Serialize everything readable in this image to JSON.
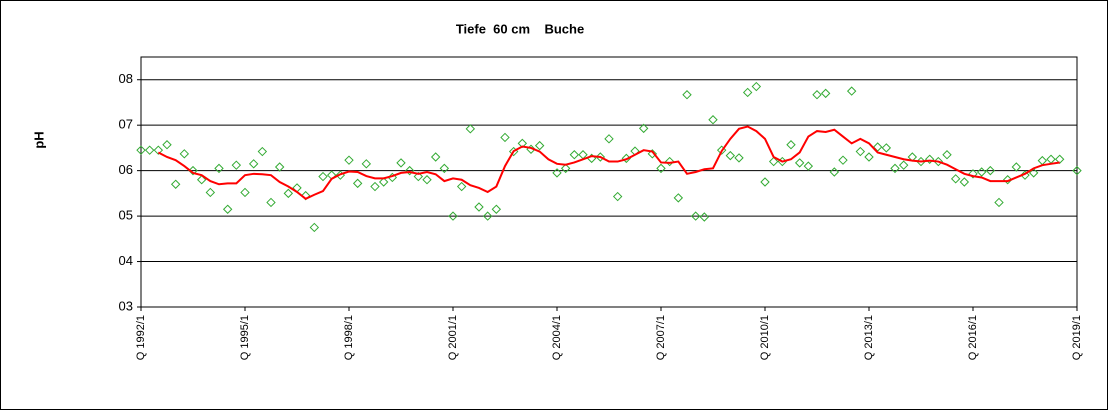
{
  "chart_data": {
    "type": "line",
    "title": "Tiefe  60 cm    Buche",
    "y_label": "pH",
    "categories": [
      "Q 1992/1",
      null,
      null,
      null,
      null,
      null,
      null,
      null,
      null,
      null,
      null,
      null,
      "Q 1995/1",
      null,
      null,
      null,
      null,
      null,
      null,
      null,
      null,
      null,
      null,
      null,
      "Q 1998/1",
      null,
      null,
      null,
      null,
      null,
      null,
      null,
      null,
      null,
      null,
      null,
      "Q 2001/1",
      null,
      null,
      null,
      null,
      null,
      null,
      null,
      null,
      null,
      null,
      null,
      "Q 2004/1",
      null,
      null,
      null,
      null,
      null,
      null,
      null,
      null,
      null,
      null,
      null,
      "Q 2007/1",
      null,
      null,
      null,
      null,
      null,
      null,
      null,
      null,
      null,
      null,
      null,
      "Q 2010/1",
      null,
      null,
      null,
      null,
      null,
      null,
      null,
      null,
      null,
      null,
      null,
      "Q 2013/1",
      null,
      null,
      null,
      null,
      null,
      null,
      null,
      null,
      null,
      null,
      null,
      "Q 2016/1",
      null,
      null,
      null,
      null,
      null,
      null,
      null,
      null,
      null,
      null,
      null,
      "Q 2019/1"
    ],
    "series": [
      {
        "color": "#33aa33",
        "marker": "diamond",
        "values": [
          6.45,
          6.45,
          6.45,
          6.57,
          5.7,
          6.37,
          6.0,
          5.8,
          5.52,
          6.05,
          5.15,
          6.12,
          5.52,
          6.15,
          6.42,
          5.3,
          6.08,
          5.5,
          5.62,
          5.45,
          4.75,
          5.87,
          5.9,
          5.9,
          6.23,
          5.72,
          6.15,
          5.65,
          5.75,
          5.85,
          6.17,
          6.0,
          5.87,
          5.8,
          6.3,
          6.05,
          5.0,
          5.65,
          6.92,
          5.2,
          5.0,
          5.15,
          6.73,
          6.42,
          6.6,
          6.47,
          6.55,
          null,
          5.95,
          6.05,
          6.35,
          6.35,
          6.27,
          6.3,
          6.7,
          5.43,
          6.27,
          6.43,
          6.93,
          6.37,
          6.05,
          6.2,
          5.4,
          7.67,
          5.0,
          4.98,
          7.12,
          6.45,
          6.33,
          6.28,
          7.72,
          7.85,
          5.75,
          6.2,
          6.2,
          6.57,
          6.17,
          6.1,
          7.67,
          7.7,
          5.97,
          6.23,
          7.75,
          6.42,
          6.3,
          6.52,
          6.5,
          6.05,
          6.12,
          6.3,
          6.2,
          6.25,
          6.2,
          6.35,
          5.82,
          5.75,
          5.93,
          5.97,
          6.0,
          5.3,
          5.8,
          6.08,
          5.9,
          5.95,
          6.22,
          6.25,
          6.25,
          null,
          6.0
        ]
      },
      {
        "color": "#ff0000",
        "values": [
          null,
          null,
          6.4,
          6.3,
          6.23,
          6.1,
          5.95,
          5.9,
          5.77,
          5.7,
          5.72,
          5.72,
          5.9,
          5.93,
          5.92,
          5.9,
          5.75,
          5.65,
          5.53,
          5.38,
          5.47,
          5.55,
          5.82,
          5.92,
          5.98,
          5.97,
          5.88,
          5.83,
          5.83,
          5.88,
          5.95,
          5.97,
          5.93,
          5.97,
          5.92,
          5.77,
          5.83,
          5.8,
          5.68,
          5.62,
          5.53,
          5.65,
          6.1,
          6.43,
          6.53,
          6.5,
          6.42,
          6.25,
          6.15,
          6.13,
          6.18,
          6.25,
          6.32,
          6.3,
          6.2,
          6.2,
          6.25,
          6.35,
          6.45,
          6.42,
          6.18,
          6.17,
          6.2,
          5.93,
          5.97,
          6.03,
          6.05,
          6.43,
          6.7,
          6.92,
          6.97,
          6.87,
          6.7,
          6.3,
          6.2,
          6.25,
          6.4,
          6.75,
          6.87,
          6.85,
          6.9,
          6.75,
          6.6,
          6.7,
          6.6,
          6.4,
          6.35,
          6.3,
          6.25,
          6.22,
          6.2,
          6.22,
          6.2,
          6.13,
          6.03,
          5.93,
          5.88,
          5.85,
          5.77,
          5.77,
          5.77,
          5.85,
          5.93,
          6.05,
          6.12,
          6.15,
          6.18,
          null,
          null
        ]
      }
    ],
    "ylim": [
      3,
      8.5
    ],
    "yticks": [
      {
        "value": 3,
        "label": "03"
      },
      {
        "value": 4,
        "label": "04"
      },
      {
        "value": 5,
        "label": "05"
      },
      {
        "value": 6,
        "label": "06"
      },
      {
        "value": 7,
        "label": "07"
      },
      {
        "value": 8,
        "label": "08"
      }
    ],
    "grid": true
  }
}
